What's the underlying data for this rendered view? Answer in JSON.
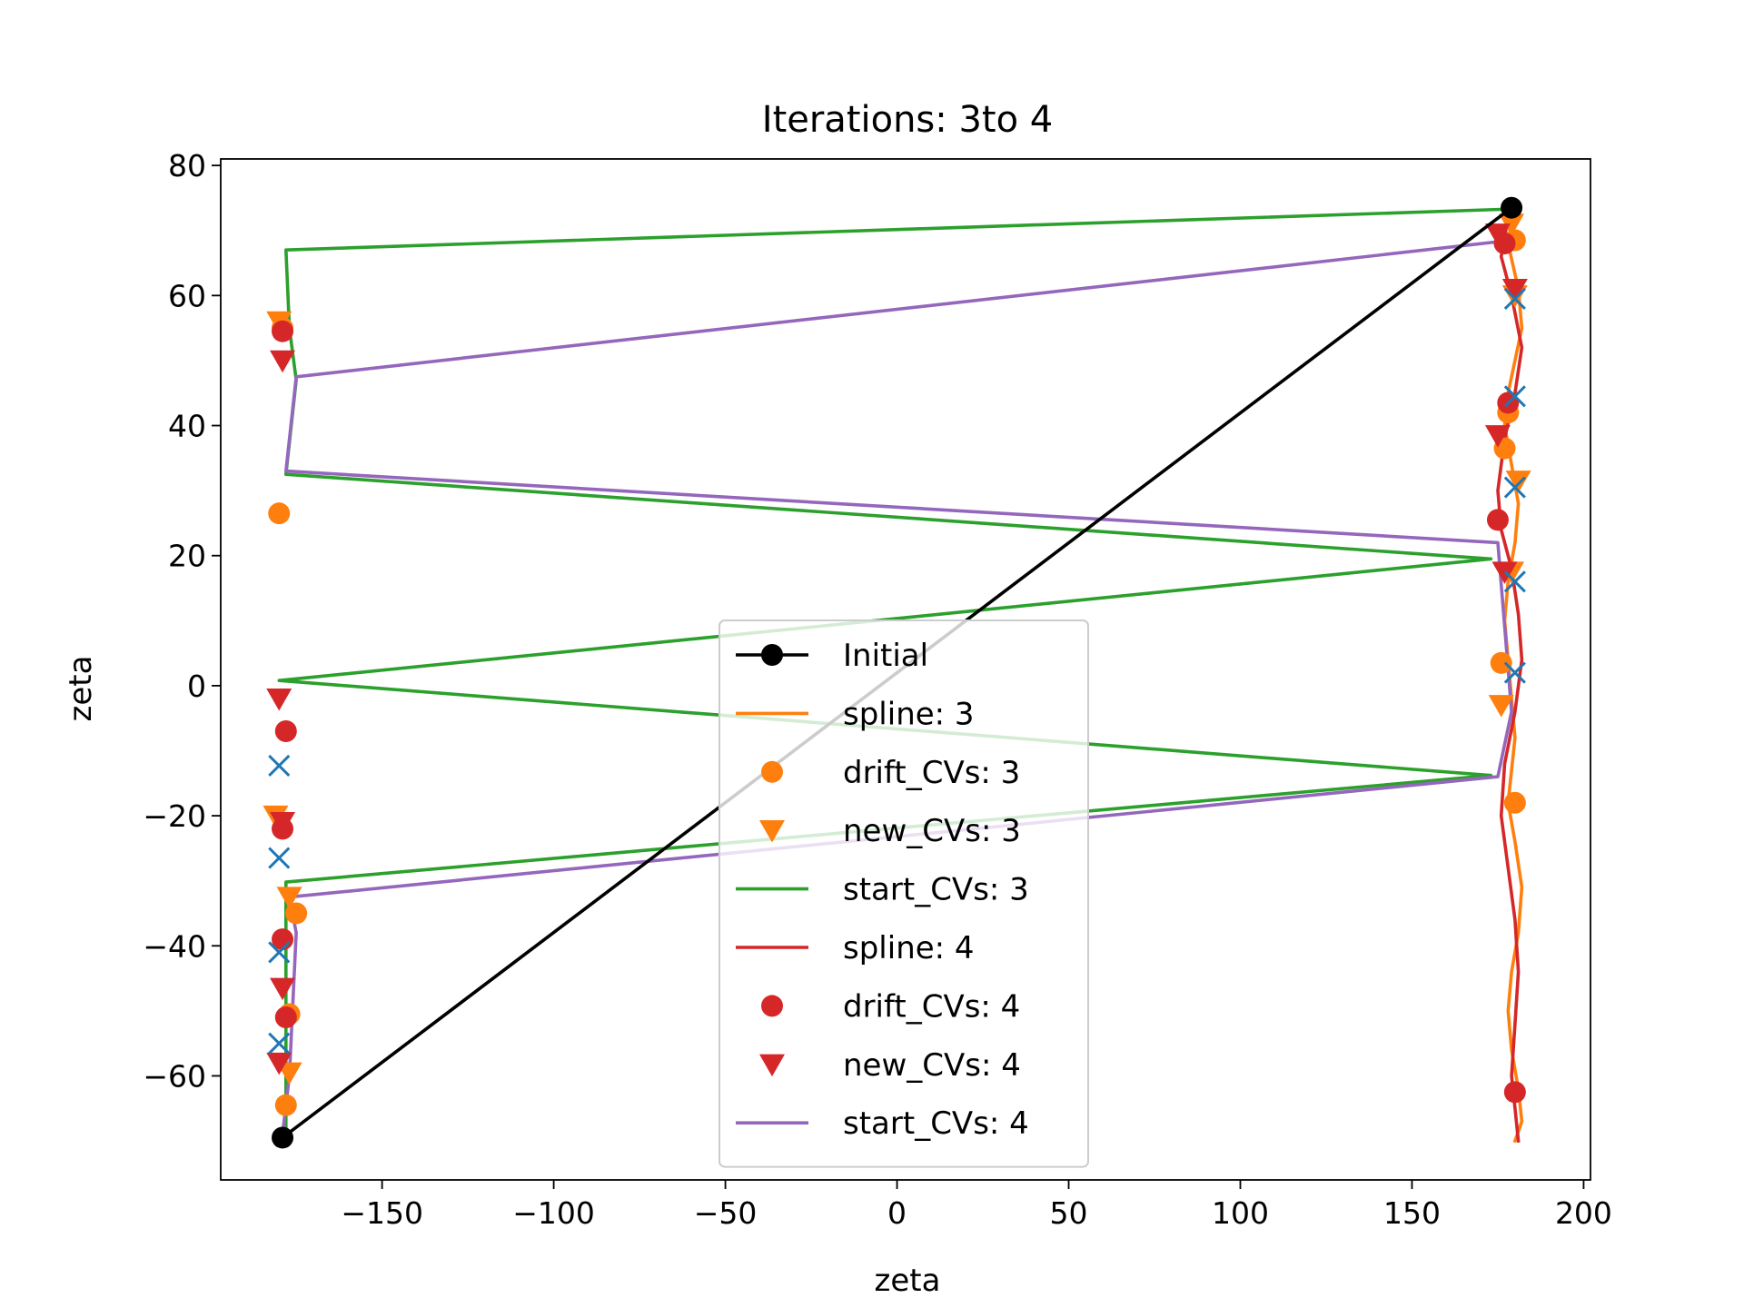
{
  "chart_data": {
    "type": "line",
    "title": "Iterations: 3to 4",
    "xlabel": "zeta",
    "ylabel": "zeta",
    "xlim": [
      -197,
      202
    ],
    "ylim": [
      -76,
      81
    ],
    "xticks": [
      -150,
      -100,
      -50,
      0,
      50,
      100,
      150,
      200
    ],
    "yticks": [
      -60,
      -40,
      -20,
      0,
      20,
      40,
      60,
      80
    ],
    "xtick_labels": [
      "−150",
      "−100",
      "−50",
      "0",
      "50",
      "100",
      "150",
      "200"
    ],
    "ytick_labels": [
      "−60",
      "−40",
      "−20",
      "0",
      "20",
      "40",
      "60",
      "80"
    ],
    "grid": false,
    "legend_position": "center-bottom",
    "series": [
      {
        "name": "Initial",
        "style": "line-marker",
        "color": "#000000",
        "marker": "circle",
        "points": [
          [
            -179,
            -69.5
          ],
          [
            179,
            73.5
          ]
        ]
      },
      {
        "name": "spline: 3",
        "style": "line",
        "color": "#ff7f0e",
        "points": [
          [
            180,
            73
          ],
          [
            178,
            68
          ],
          [
            181,
            61
          ],
          [
            182,
            55
          ],
          [
            180,
            50
          ],
          [
            178,
            45
          ],
          [
            177,
            40
          ],
          [
            179,
            34
          ],
          [
            181,
            28
          ],
          [
            180,
            22
          ],
          [
            178,
            16
          ],
          [
            177,
            10
          ],
          [
            178,
            4
          ],
          [
            179,
            -2
          ],
          [
            180,
            -8
          ],
          [
            179,
            -13
          ],
          [
            178,
            -18
          ],
          [
            180,
            -24
          ],
          [
            182,
            -31
          ],
          [
            181,
            -38
          ],
          [
            179,
            -44
          ],
          [
            178,
            -50
          ],
          [
            179,
            -56
          ],
          [
            181,
            -62
          ],
          [
            182,
            -67
          ],
          [
            180,
            -70
          ]
        ]
      },
      {
        "name": "drift_CVs: 3",
        "style": "marker",
        "color": "#ff7f0e",
        "marker": "circle",
        "points": [
          [
            -180,
            26.5
          ],
          [
            -179,
            55
          ],
          [
            -175,
            -35
          ],
          [
            -177,
            -50.5
          ],
          [
            -178,
            -64.5
          ],
          [
            180,
            68.5
          ],
          [
            178,
            42
          ],
          [
            177,
            36.5
          ],
          [
            176,
            3.5
          ],
          [
            180,
            -18
          ]
        ]
      },
      {
        "name": "new_CVs: 3",
        "style": "marker",
        "color": "#ff7f0e",
        "marker": "triangle-down",
        "points": [
          [
            -180,
            56
          ],
          [
            -181,
            -20
          ],
          [
            -177,
            -32.5
          ],
          [
            -177,
            -59.5
          ],
          [
            179,
            71
          ],
          [
            180,
            60
          ],
          [
            181,
            31.5
          ],
          [
            179,
            17.5
          ],
          [
            176,
            -3
          ]
        ]
      },
      {
        "name": "start_CVs: 3",
        "style": "line",
        "color": "#2ca02c",
        "points": [
          [
            179,
            73.3
          ],
          [
            -178,
            67
          ],
          [
            -177,
            55
          ],
          [
            -175,
            47
          ],
          [
            -178,
            32.5
          ],
          [
            173,
            19.5
          ],
          [
            -180,
            0.8
          ],
          [
            173,
            -13.8
          ],
          [
            -178,
            -30.2
          ],
          [
            -178,
            -42
          ],
          [
            -178,
            -69.5
          ]
        ]
      },
      {
        "name": "spline: 4",
        "style": "line",
        "color": "#d62728",
        "points": [
          [
            178,
            72
          ],
          [
            176,
            66
          ],
          [
            179,
            60
          ],
          [
            182,
            52
          ],
          [
            180,
            45
          ],
          [
            177,
            38
          ],
          [
            175,
            30
          ],
          [
            176,
            24
          ],
          [
            179,
            18
          ],
          [
            181,
            11
          ],
          [
            182,
            4
          ],
          [
            180,
            -4
          ],
          [
            177,
            -12
          ],
          [
            176,
            -20
          ],
          [
            178,
            -28
          ],
          [
            180,
            -36
          ],
          [
            181,
            -44
          ],
          [
            180,
            -52
          ],
          [
            179,
            -60
          ],
          [
            180,
            -65
          ],
          [
            181,
            -70
          ]
        ]
      },
      {
        "name": "drift_CVs: 4",
        "style": "marker",
        "color": "#d62728",
        "marker": "circle",
        "points": [
          [
            -179,
            54.5
          ],
          [
            -178,
            -7
          ],
          [
            -179,
            -22
          ],
          [
            -179,
            -39
          ],
          [
            -178,
            -51
          ],
          [
            177,
            68
          ],
          [
            178,
            43.5
          ],
          [
            175,
            25.5
          ],
          [
            180,
            -62.5
          ]
        ]
      },
      {
        "name": "new_CVs: 4",
        "style": "marker",
        "color": "#d62728",
        "marker": "triangle-down",
        "points": [
          [
            -179,
            50
          ],
          [
            -180,
            -2
          ],
          [
            -179,
            -21
          ],
          [
            -179,
            -46.5
          ],
          [
            -180,
            -58
          ],
          [
            175,
            69.5
          ],
          [
            180,
            61
          ],
          [
            175,
            38.5
          ],
          [
            177,
            17.5
          ]
        ]
      },
      {
        "name": "start_CVs: 4",
        "style": "line",
        "color": "#9467bd",
        "points": [
          [
            180,
            72
          ],
          [
            179,
            68.5
          ],
          [
            -175,
            47.5
          ],
          [
            -178,
            33
          ],
          [
            175,
            22
          ],
          [
            179,
            -4
          ],
          [
            175,
            -14
          ],
          [
            -177,
            -32.5
          ],
          [
            -175,
            -38
          ],
          [
            -177,
            -60
          ],
          [
            -179,
            -69
          ]
        ]
      },
      {
        "name": "",
        "style": "marker",
        "color": "#1f77b4",
        "marker": "x",
        "points": [
          [
            -180,
            -12.3
          ],
          [
            -180,
            -26.5
          ],
          [
            -180,
            -41
          ],
          [
            -180,
            -55
          ],
          [
            180,
            59.5
          ],
          [
            180,
            44.5
          ],
          [
            180,
            30.5
          ],
          [
            180,
            16
          ],
          [
            180,
            2
          ]
        ]
      }
    ]
  }
}
